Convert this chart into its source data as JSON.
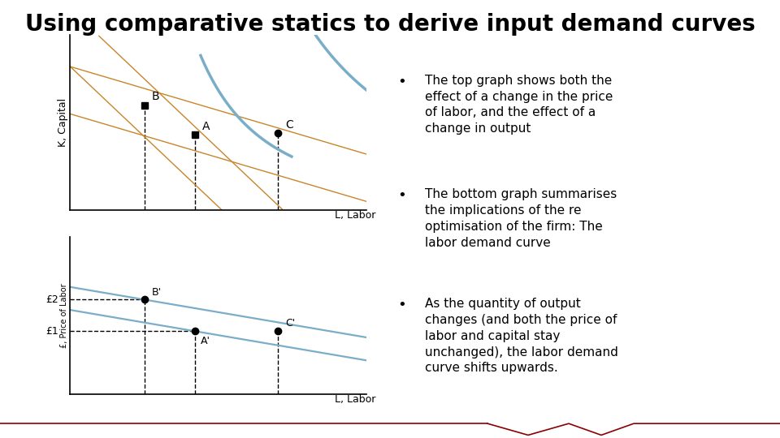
{
  "title": "Using comparative statics to derive input demand curves",
  "title_fontsize": 20,
  "title_fontweight": "bold",
  "bg_color": "#ffffff",
  "top_graph": {
    "ylabel": "K, Capital",
    "xlabel": "L, Labor",
    "isoquant_color": "#7aaec8",
    "isocost_color": "#c8852a",
    "point_B": [
      0.25,
      0.6
    ],
    "point_A": [
      0.42,
      0.43
    ],
    "point_C": [
      0.7,
      0.44
    ],
    "dashed_color": "#000000"
  },
  "bottom_graph": {
    "ylabel": "£, Price of Labor",
    "xlabel": "L, Labor",
    "demand_color": "#7aaec8",
    "point_B_prime": [
      0.25,
      0.6
    ],
    "point_A_prime": [
      0.42,
      0.4
    ],
    "point_C_prime": [
      0.7,
      0.4
    ],
    "label_f2": "£2",
    "label_f1": "£1",
    "dashed_color": "#000000"
  },
  "bullet_texts": [
    "The top graph shows both the\neffect of a change in the price\nof labor, and the effect of a\nchange in output",
    "The bottom graph summarises\nthe implications of the re\noptimisation of the firm: The\nlabor demand curve",
    "As the quantity of output\nchanges (and both the price of\nlabor and capital stay\nunchanged), the labor demand\ncurve shifts upwards."
  ],
  "bullet_fontsize": 12,
  "bottom_wave_color": "#8b0000"
}
